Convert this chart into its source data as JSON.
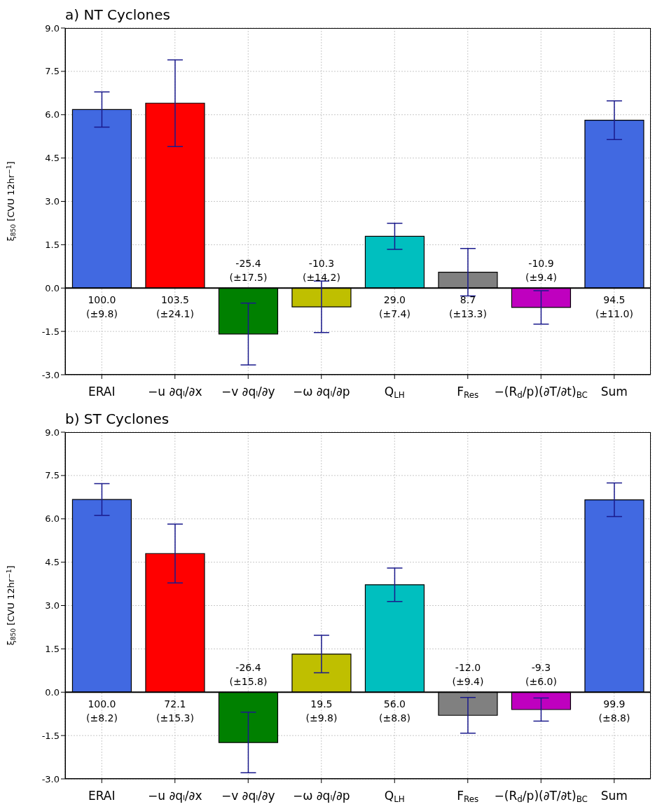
{
  "chart_data": [
    {
      "type": "bar",
      "title": "a) NT Cyclones",
      "ylabel": "ξ$_{850}$ [CVU 12hr$^{−1}$]",
      "categories": [
        "ERAI",
        "−u ∂qₗ/∂x",
        "−v ∂qₗ/∂y",
        "−ω ∂qₗ/∂p",
        "Q$_{LH}$",
        "F$_{Res}$",
        "−(R$_{d}$/p)(∂T/∂t)$_{BC}$",
        "Sum"
      ],
      "values": [
        6.18,
        6.4,
        -1.59,
        -0.65,
        1.79,
        0.55,
        -0.67,
        5.81
      ],
      "errors": [
        0.61,
        1.5,
        1.07,
        0.89,
        0.45,
        0.82,
        0.58,
        0.67
      ],
      "colors": [
        "#4169e1",
        "#ff0000",
        "#008000",
        "#bfbf00",
        "#00bfbf",
        "#808080",
        "#bf00bf",
        "#4169e1"
      ],
      "annotations": [
        "100.0\n(±9.8)",
        "103.5\n(±24.1)",
        "-25.4\n(±17.5)",
        "-10.3\n(±14.2)",
        "29.0\n(±7.4)",
        "8.7\n(±13.3)",
        "-10.9\n(±9.4)",
        "94.5\n(±11.0)"
      ],
      "ylim": [
        -3,
        9
      ],
      "yticks": [
        {
          "value": -3,
          "label": "-3.0"
        },
        {
          "value": -1.5,
          "label": "-1.5"
        },
        {
          "value": 0,
          "label": "0.0"
        },
        {
          "value": 1.5,
          "label": "1.5"
        },
        {
          "value": 3,
          "label": "3.0"
        },
        {
          "value": 4.5,
          "label": "4.5"
        },
        {
          "value": 6,
          "label": "6.0"
        },
        {
          "value": 7.5,
          "label": "7.5"
        },
        {
          "value": 9,
          "label": "9.0"
        }
      ],
      "ref_lines": [
        {
          "axis": "y",
          "value": 0,
          "color": "#000000"
        }
      ],
      "grid": true
    },
    {
      "type": "bar",
      "title": "b) ST Cyclones",
      "ylabel": "ξ$_{850}$ [CVU 12hr$^{−1}$]",
      "categories": [
        "ERAI",
        "−u ∂qₗ/∂x",
        "−v ∂qₗ/∂y",
        "−ω ∂qₗ/∂p",
        "Q$_{LH}$",
        "F$_{Res}$",
        "−(R$_{d}$/p)(∂T/∂t)$_{BC}$",
        "Sum"
      ],
      "values": [
        6.67,
        4.8,
        -1.74,
        1.32,
        3.72,
        -0.8,
        -0.6,
        6.66
      ],
      "errors": [
        0.55,
        1.02,
        1.05,
        0.65,
        0.58,
        0.62,
        0.4,
        0.58
      ],
      "colors": [
        "#4169e1",
        "#ff0000",
        "#008000",
        "#bfbf00",
        "#00bfbf",
        "#808080",
        "#bf00bf",
        "#4169e1"
      ],
      "annotations": [
        "100.0\n(±8.2)",
        "72.1\n(±15.3)",
        "-26.4\n(±15.8)",
        "19.5\n(±9.8)",
        "56.0\n(±8.8)",
        "-12.0\n(±9.4)",
        "-9.3\n(±6.0)",
        "99.9\n(±8.8)"
      ],
      "ylim": [
        -3,
        9
      ],
      "yticks": [
        {
          "value": -3,
          "label": "-3.0"
        },
        {
          "value": -1.5,
          "label": "-1.5"
        },
        {
          "value": 0,
          "label": "0.0"
        },
        {
          "value": 1.5,
          "label": "1.5"
        },
        {
          "value": 3,
          "label": "3.0"
        },
        {
          "value": 4.5,
          "label": "4.5"
        },
        {
          "value": 6,
          "label": "6.0"
        },
        {
          "value": 7.5,
          "label": "7.5"
        },
        {
          "value": 9,
          "label": "9.0"
        }
      ],
      "ref_lines": [
        {
          "axis": "y",
          "value": 0,
          "color": "#000000"
        }
      ],
      "grid": true
    }
  ]
}
